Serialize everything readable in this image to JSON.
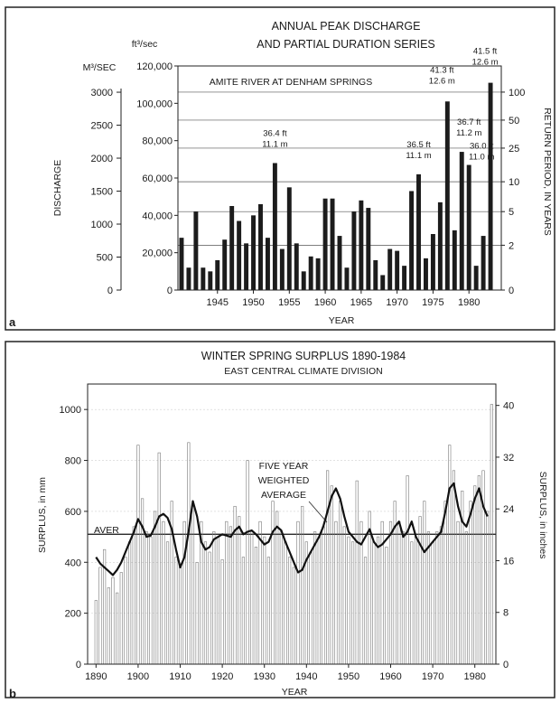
{
  "panels": [
    {
      "letter": "a",
      "title_line1": "ANNUAL PEAK DISCHARGE",
      "title_line2": "AND PARTIAL DURATION SERIES",
      "station": "AMITE RIVER AT DENHAM SPRINGS",
      "unit_ft3": "ft³/sec",
      "unit_m3": "M³/SEC",
      "ylabel": "DISCHARGE",
      "ylabel_right": "RETURN PERIOD, IN YEARS",
      "xlabel": "YEAR"
    },
    {
      "letter": "b",
      "title_line1": "WINTER SPRING SURPLUS   1890-1984",
      "title_line2": "EAST CENTRAL CLIMATE DIVISION",
      "ylabel_left": "SURPLUS, in mm",
      "ylabel_right": "SURPLUS, in inches",
      "xlabel": "YEAR",
      "avg_label": "AVER",
      "curve_label_1": "FIVE YEAR",
      "curve_label_2": "WEIGHTED",
      "curve_label_3": "AVERAGE"
    }
  ],
  "chart_data": [
    {
      "type": "bar",
      "title": "ANNUAL PEAK DISCHARGE AND PARTIAL DURATION SERIES",
      "subtitle": "AMITE RIVER AT DENHAM SPRINGS",
      "xlabel": "YEAR",
      "ylabel": "DISCHARGE",
      "xlim": [
        1939.5,
        1984.5
      ],
      "ylim": [
        0,
        120000
      ],
      "x_ticks": [
        1945,
        1950,
        1955,
        1960,
        1965,
        1970,
        1975,
        1980
      ],
      "y_ticks_ft3": [
        "0",
        "20,000",
        "40,000",
        "60,000",
        "80,000",
        "100,000",
        "120,000"
      ],
      "y_ticks_m3": [
        "0",
        "500",
        "1000",
        "1500",
        "2000",
        "2500",
        "3000"
      ],
      "return_period_ticks": [
        "0",
        "2",
        "5",
        "10",
        "25",
        "50",
        "100"
      ],
      "return_period_discharge": [
        0,
        24000,
        42000,
        58000,
        76000,
        91000,
        106000
      ],
      "grid": "horizontal at return periods",
      "series": [
        {
          "years": [
            1940,
            1941,
            1942,
            1943,
            1944,
            1945,
            1946,
            1947,
            1948,
            1949,
            1950,
            1951,
            1952,
            1953,
            1954,
            1955,
            1956,
            1957,
            1958,
            1959,
            1960,
            1961,
            1962,
            1963,
            1964,
            1965,
            1966,
            1967,
            1968,
            1969,
            1970,
            1971,
            1972,
            1973,
            1974,
            1975,
            1976,
            1977,
            1978,
            1979,
            1980,
            1981,
            1982,
            1983
          ],
          "values": [
            28000,
            12000,
            42000,
            12000,
            10000,
            16000,
            27000,
            45000,
            37000,
            25000,
            40000,
            46000,
            28000,
            68000,
            22000,
            55000,
            25000,
            10000,
            18000,
            17000,
            49000,
            49000,
            29000,
            12000,
            42000,
            48000,
            44000,
            16000,
            8000,
            22000,
            21000,
            13000,
            53000,
            62000,
            17000,
            30000,
            47000,
            101000,
            32000,
            74000,
            67000,
            13000,
            29000,
            111000
          ]
        }
      ],
      "annotations": [
        {
          "year": 1953,
          "text1": "36.4 ft",
          "text2": "11.1 m"
        },
        {
          "year": 1973,
          "text1": "36.5 ft",
          "text2": "11.1 m"
        },
        {
          "year": 1977,
          "text1": "41.3 ft",
          "text2": "12.6 m"
        },
        {
          "year": 1979,
          "text1": "36.7 ft",
          "text2": "11.2 m"
        },
        {
          "year": 1980,
          "text1": "36.0 ft",
          "text2": "11.0 m"
        },
        {
          "year": 1983,
          "text1": "41.5 ft",
          "text2": "12.6 m"
        }
      ]
    },
    {
      "type": "bar",
      "title": "WINTER SPRING SURPLUS 1890-1984",
      "subtitle": "EAST CENTRAL CLIMATE DIVISION",
      "xlabel": "YEAR",
      "ylabel": "SURPLUS, in mm",
      "y2label": "SURPLUS, in inches",
      "xlim": [
        1888,
        1985
      ],
      "ylim": [
        0,
        1100
      ],
      "x_ticks": [
        1890,
        1900,
        1910,
        1920,
        1930,
        1940,
        1950,
        1960,
        1970,
        1980
      ],
      "y_ticks_mm": [
        "0",
        "200",
        "400",
        "600",
        "800",
        "1000"
      ],
      "y_ticks_in": [
        "0",
        "8",
        "16",
        "24",
        "32",
        "40"
      ],
      "average": 510,
      "grid": "on",
      "years": [
        1890,
        1891,
        1892,
        1893,
        1894,
        1895,
        1896,
        1897,
        1898,
        1899,
        1900,
        1901,
        1902,
        1903,
        1904,
        1905,
        1906,
        1907,
        1908,
        1909,
        1910,
        1911,
        1912,
        1913,
        1914,
        1915,
        1916,
        1917,
        1918,
        1919,
        1920,
        1921,
        1922,
        1923,
        1924,
        1925,
        1926,
        1927,
        1928,
        1929,
        1930,
        1931,
        1932,
        1933,
        1934,
        1935,
        1936,
        1937,
        1938,
        1939,
        1940,
        1941,
        1942,
        1943,
        1944,
        1945,
        1946,
        1947,
        1948,
        1949,
        1950,
        1951,
        1952,
        1953,
        1954,
        1955,
        1956,
        1957,
        1958,
        1959,
        1960,
        1961,
        1962,
        1963,
        1964,
        1965,
        1966,
        1967,
        1968,
        1969,
        1970,
        1971,
        1972,
        1973,
        1974,
        1975,
        1976,
        1977,
        1978,
        1979,
        1980,
        1981,
        1982,
        1983,
        1984
      ],
      "series": [
        {
          "name": "annual",
          "values": [
            250,
            380,
            450,
            300,
            340,
            280,
            360,
            420,
            480,
            540,
            860,
            650,
            520,
            500,
            600,
            830,
            560,
            480,
            640,
            420,
            380,
            560,
            870,
            620,
            400,
            560,
            480,
            440,
            520,
            500,
            410,
            560,
            540,
            620,
            580,
            420,
            800,
            520,
            460,
            560,
            500,
            420,
            640,
            600,
            520,
            480,
            420,
            380,
            560,
            620,
            480,
            440,
            520,
            500,
            540,
            760,
            700,
            560,
            640,
            540,
            500,
            480,
            720,
            560,
            420,
            600,
            480,
            500,
            560,
            460,
            560,
            640,
            560,
            520,
            740,
            480,
            500,
            580,
            640,
            520,
            480,
            520,
            540,
            640,
            860,
            760,
            560,
            680,
            520,
            640,
            700,
            740,
            760,
            600,
            1020
          ]
        },
        {
          "name": "FIVE YEAR WEIGHTED AVERAGE",
          "x": [
            1890,
            1891,
            1892,
            1893,
            1894,
            1895,
            1896,
            1897,
            1898,
            1899,
            1900,
            1901,
            1902,
            1903,
            1904,
            1905,
            1906,
            1907,
            1908,
            1909,
            1910,
            1911,
            1912,
            1913,
            1914,
            1915,
            1916,
            1917,
            1918,
            1919,
            1920,
            1921,
            1922,
            1923,
            1924,
            1925,
            1926,
            1927,
            1928,
            1929,
            1930,
            1931,
            1932,
            1933,
            1934,
            1935,
            1936,
            1937,
            1938,
            1939,
            1940,
            1941,
            1942,
            1943,
            1944,
            1945,
            1946,
            1947,
            1948,
            1949,
            1950,
            1951,
            1952,
            1953,
            1954,
            1955,
            1956,
            1957,
            1958,
            1959,
            1960,
            1961,
            1962,
            1963,
            1964,
            1965,
            1966,
            1967,
            1968,
            1969,
            1970,
            1971,
            1972,
            1973,
            1974,
            1975,
            1976,
            1977,
            1978,
            1979,
            1980,
            1981,
            1982,
            1983
          ],
          "values": [
            420,
            395,
            380,
            365,
            350,
            370,
            400,
            440,
            480,
            520,
            570,
            540,
            500,
            505,
            540,
            580,
            590,
            575,
            530,
            450,
            380,
            420,
            520,
            640,
            580,
            480,
            450,
            460,
            490,
            500,
            510,
            505,
            500,
            525,
            540,
            510,
            520,
            525,
            510,
            490,
            470,
            480,
            520,
            540,
            525,
            480,
            440,
            400,
            360,
            370,
            410,
            440,
            470,
            500,
            540,
            600,
            660,
            690,
            650,
            580,
            520,
            500,
            480,
            470,
            500,
            530,
            480,
            460,
            470,
            490,
            510,
            540,
            560,
            500,
            520,
            560,
            500,
            470,
            440,
            460,
            480,
            500,
            520,
            600,
            690,
            710,
            620,
            560,
            540,
            590,
            650,
            690,
            620,
            580
          ]
        }
      ]
    }
  ]
}
